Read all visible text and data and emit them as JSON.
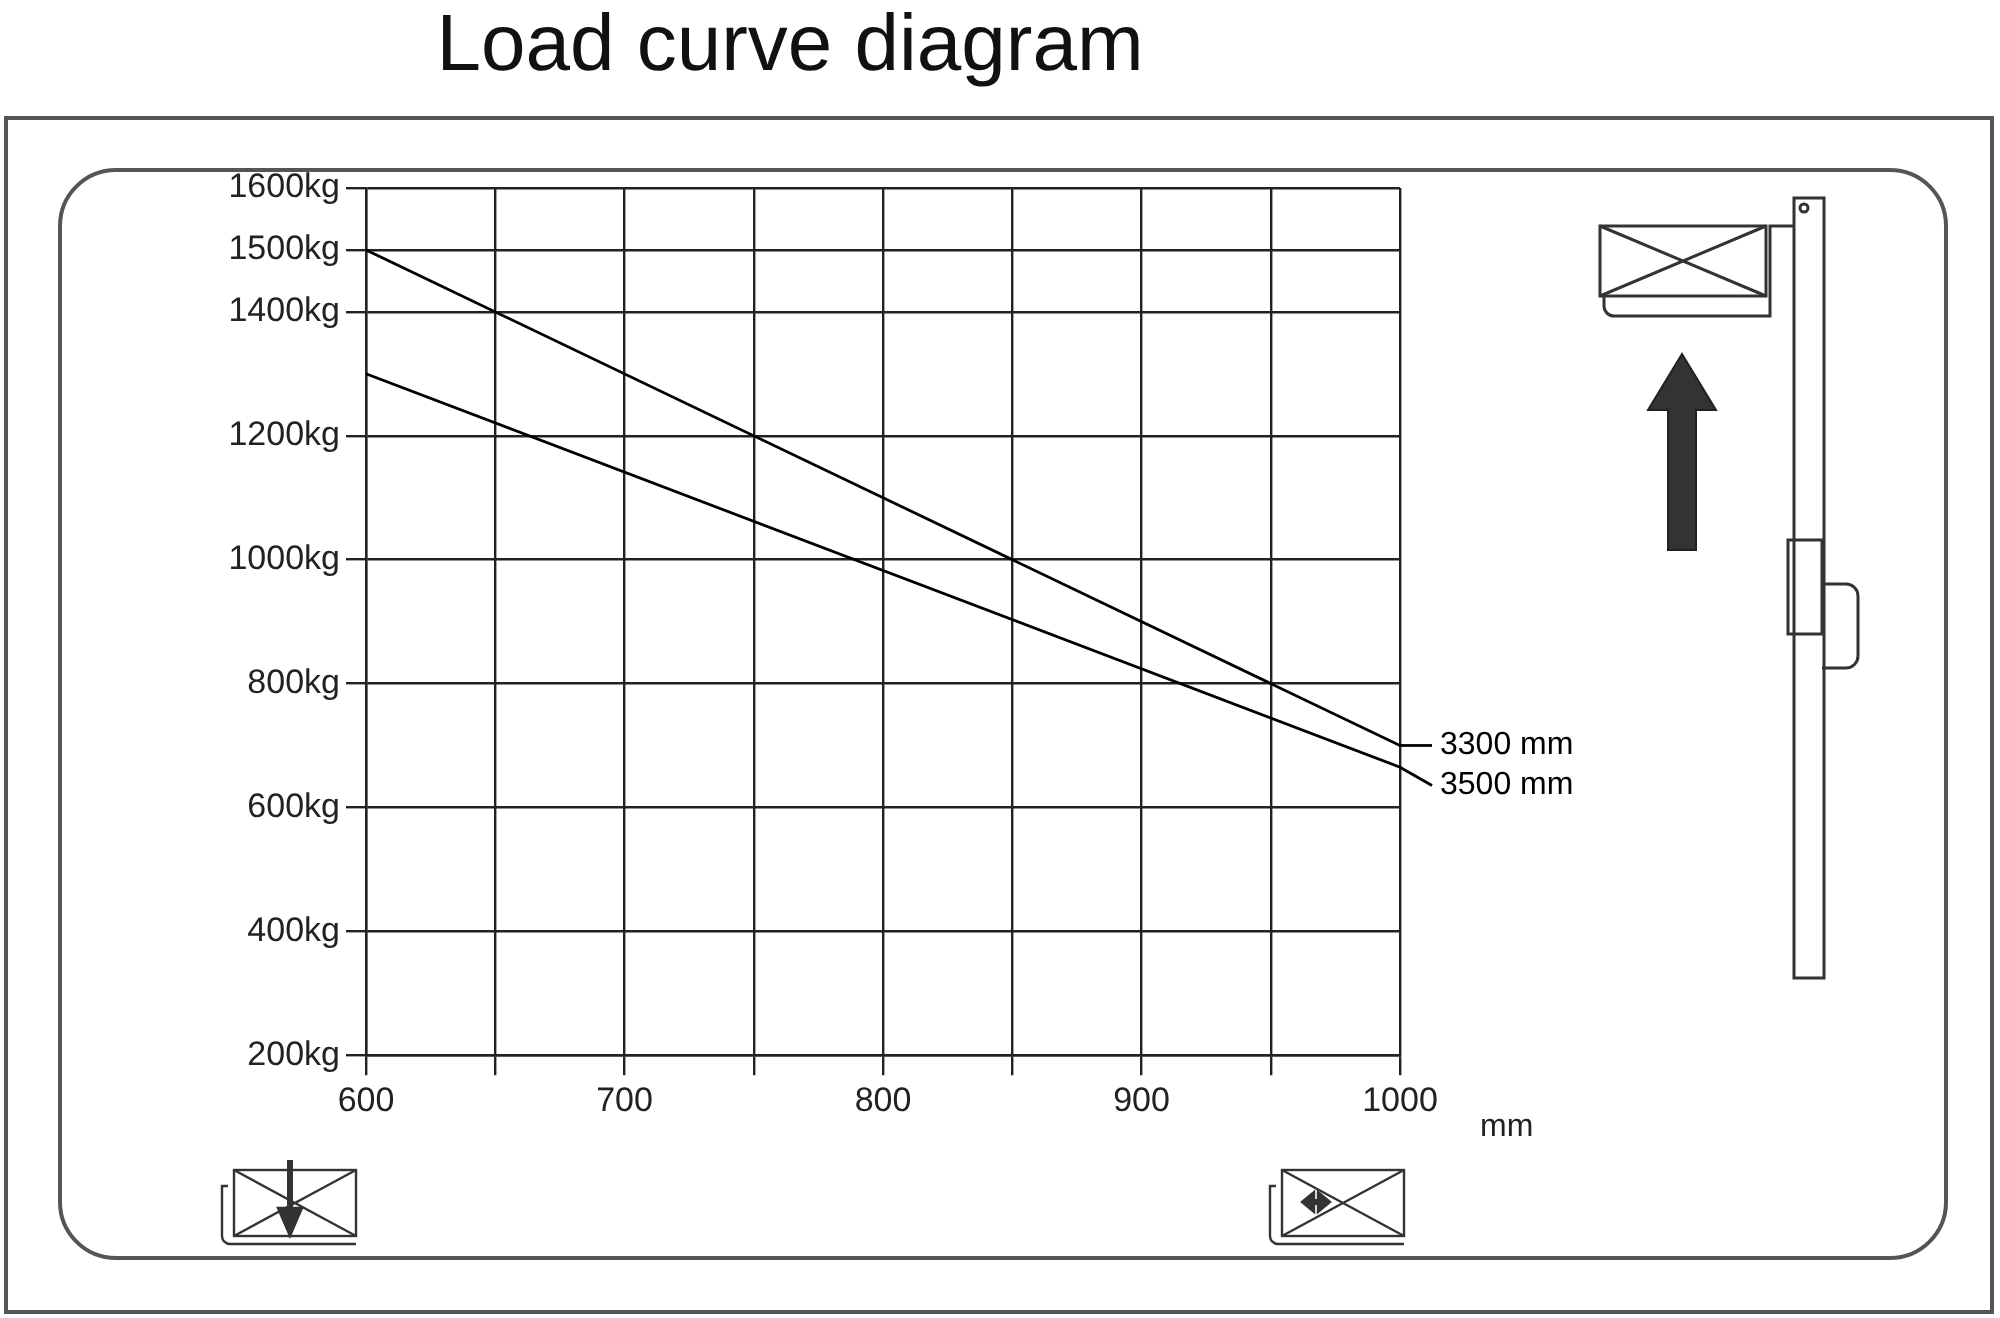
{
  "chart_data": {
    "type": "line",
    "title": "Load curve diagram",
    "xlabel": "mm",
    "xlim": [
      600,
      1000
    ],
    "xticks": [
      600,
      {
        "value": 650,
        "label": null
      },
      700,
      {
        "value": 750,
        "label": null
      },
      800,
      {
        "value": 850,
        "label": null
      },
      900,
      {
        "value": 950,
        "label": null
      },
      1000
    ],
    "ylim": [
      200,
      1600
    ],
    "yticks": [
      {
        "value": 200,
        "label": "200kg"
      },
      {
        "value": 400,
        "label": "400kg"
      },
      {
        "value": 600,
        "label": "600kg"
      },
      {
        "value": 800,
        "label": "800kg"
      },
      {
        "value": 1000,
        "label": "1000kg"
      },
      {
        "value": 1200,
        "label": "1200kg"
      },
      {
        "value": 1400,
        "label": "1400kg"
      },
      {
        "value": 1500,
        "label": "1500kg"
      },
      {
        "value": 1600,
        "label": "1600kg"
      }
    ],
    "grid": true,
    "legend": "right",
    "x": [
      600,
      1000
    ],
    "marker": "none",
    "line_style": "solid",
    "series": [
      {
        "name": "3300 mm",
        "color": "#000000",
        "values": [
          1500,
          700
        ]
      },
      {
        "name": "3500 mm",
        "color": "#000000",
        "values": [
          1300,
          665
        ]
      }
    ]
  }
}
